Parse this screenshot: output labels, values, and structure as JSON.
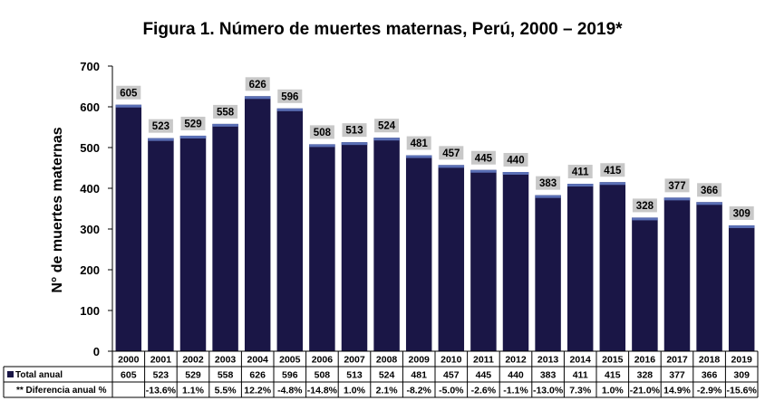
{
  "chart_data": {
    "type": "bar",
    "title": "Figura 1. Número de muertes maternas, Perú, 2000 – 2019*",
    "ylabel": "N° de muertes  maternas",
    "ylim": [
      0,
      700
    ],
    "yticks": [
      "0",
      "100",
      "200",
      "300",
      "400",
      "500",
      "600",
      "700"
    ],
    "grid": false,
    "categories": [
      "2000",
      "2001",
      "2002",
      "2003",
      "2004",
      "2005",
      "2006",
      "2007",
      "2008",
      "2009",
      "2010",
      "2011",
      "2012",
      "2013",
      "2014",
      "2015",
      "2016",
      "2017",
      "2018",
      "2019"
    ],
    "series": [
      {
        "name": "Total anual",
        "values": [
          605,
          523,
          529,
          558,
          626,
          596,
          508,
          513,
          524,
          481,
          457,
          445,
          440,
          383,
          411,
          415,
          328,
          377,
          366,
          309
        ],
        "color": "#1a1646"
      }
    ],
    "table": {
      "row1_label": "Total anual",
      "row1_values": [
        "605",
        "523",
        "529",
        "558",
        "626",
        "596",
        "508",
        "513",
        "524",
        "481",
        "457",
        "445",
        "440",
        "383",
        "411",
        "415",
        "328",
        "377",
        "366",
        "309"
      ],
      "row2_label": "** Diferencia anual %",
      "row2_values": [
        "",
        "-13.6%",
        "1.1%",
        "5.5%",
        "12.2%",
        "-4.8%",
        "-14.8%",
        "1.0%",
        "2.1%",
        "-8.2%",
        "-5.0%",
        "-2.6%",
        "-1.1%",
        "-13.0%",
        "7.3%",
        "1.0%",
        "-21.0%",
        "14.9%",
        "-2.9%",
        "-15.6%"
      ]
    },
    "colors": {
      "bar": "#1a1646",
      "bar_top": "#5a6fb5",
      "label_bg": "#c8c8c8"
    }
  }
}
